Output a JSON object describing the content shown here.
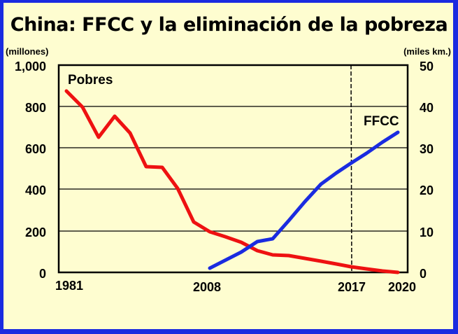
{
  "chart_data": {
    "type": "line",
    "title": "China: FFCC y la eliminación de la pobreza",
    "left_axis": {
      "unit_label": "(millones)",
      "ticks": [
        "1,000",
        "800",
        "600",
        "400",
        "200",
        "0"
      ],
      "range": [
        0,
        1000
      ]
    },
    "right_axis": {
      "unit_label": "(miles km.)",
      "ticks": [
        "50",
        "40",
        "30",
        "20",
        "10",
        "0"
      ],
      "range": [
        0,
        50
      ]
    },
    "x_tick_labels": [
      "1981",
      "2008",
      "2017",
      "2020"
    ],
    "grid": true,
    "reference_line": {
      "x": "2017",
      "style": "dashed"
    },
    "series": [
      {
        "name": "Pobres",
        "axis": "left",
        "color": "#ee1111",
        "points": [
          {
            "x": 1981.5,
            "y": 875
          },
          {
            "x": 1984,
            "y": 800
          },
          {
            "x": 1987,
            "y": 650
          },
          {
            "x": 1990,
            "y": 755
          },
          {
            "x": 1993,
            "y": 672
          },
          {
            "x": 1996,
            "y": 510
          },
          {
            "x": 1999,
            "y": 507
          },
          {
            "x": 2002,
            "y": 405
          },
          {
            "x": 2005,
            "y": 243
          },
          {
            "x": 2008,
            "y": 195
          },
          {
            "x": 2009,
            "y": 172
          },
          {
            "x": 2010,
            "y": 145
          },
          {
            "x": 2011,
            "y": 105
          },
          {
            "x": 2012,
            "y": 84
          },
          {
            "x": 2013,
            "y": 81
          },
          {
            "x": 2014,
            "y": 68
          },
          {
            "x": 2015,
            "y": 54
          },
          {
            "x": 2016,
            "y": 41
          },
          {
            "x": 2017,
            "y": 27
          },
          {
            "x": 2018,
            "y": 17
          },
          {
            "x": 2019,
            "y": 6
          },
          {
            "x": 2020,
            "y": 0
          }
        ]
      },
      {
        "name": "FFCC",
        "axis": "right",
        "color": "#1a2be0",
        "points": [
          {
            "x": 2008,
            "y": 1
          },
          {
            "x": 2010,
            "y": 5
          },
          {
            "x": 2011,
            "y": 7.3
          },
          {
            "x": 2012,
            "y": 8.1
          },
          {
            "x": 2013,
            "y": 10
          },
          {
            "x": 2014,
            "y": 16.5
          },
          {
            "x": 2015,
            "y": 22
          },
          {
            "x": 2016,
            "y": 25
          },
          {
            "x": 2017,
            "y": 28
          },
          {
            "x": 2018,
            "y": 30.5
          },
          {
            "x": 2019,
            "y": 32
          },
          {
            "x": 2020,
            "y": 34
          }
        ]
      }
    ]
  },
  "series_labels": {
    "pobres": "Pobres",
    "ffcc": "FFCC"
  },
  "pixel_paths": {
    "pobres": "95,130 118,153 141,196 164,166 186,190 209,238 232,239 254,269 277,317 300,331 322,338 345,346 368,358 390,364 413,365 436,369 459,373 481,377 502,381 524,384 547,387 569,389",
    "ffcc": "300,383 345,360 368,345 390,341 413,315 436,288 459,263 481,247 502,233 524,219 547,203 569,189"
  }
}
